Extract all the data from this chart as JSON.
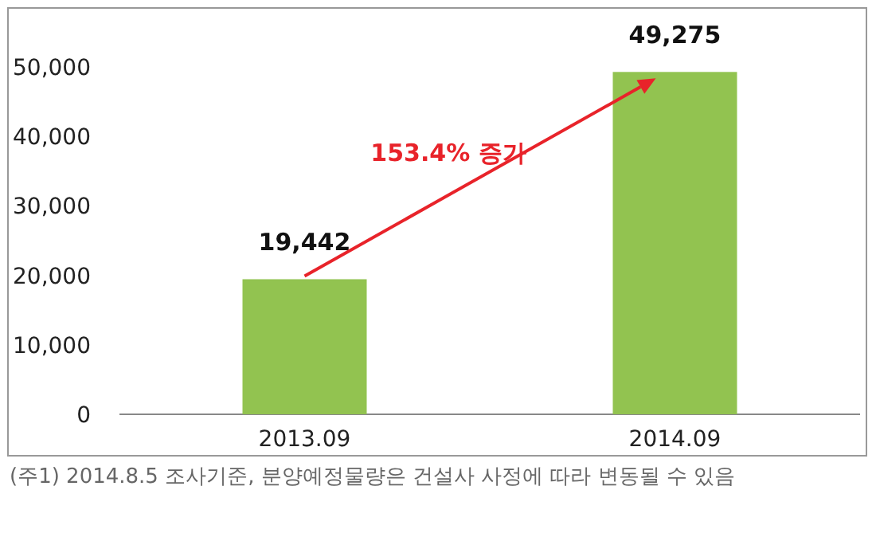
{
  "chart_data": {
    "type": "bar",
    "categories": [
      "2013.09",
      "2014.09"
    ],
    "series": [
      {
        "color": "#92c350",
        "values": [
          19442,
          49275
        ],
        "value_labels": [
          "19,442",
          "49,275"
        ]
      }
    ],
    "ylim": [
      0,
      50000
    ],
    "yticks": [
      {
        "value": 0,
        "label": "0"
      },
      {
        "value": 10000,
        "label": "10,000"
      },
      {
        "value": 20000,
        "label": "20,000"
      },
      {
        "value": 30000,
        "label": "30,000"
      },
      {
        "value": 40000,
        "label": "40,000"
      },
      {
        "value": 50000,
        "label": "50,000"
      }
    ],
    "grid": false,
    "annotations": [
      "153.4% 증가",
      "(주1) 2014.8.5 조사기준, 분양예정물량은 건설사 사정에 따라 변동될 수 있음"
    ]
  }
}
